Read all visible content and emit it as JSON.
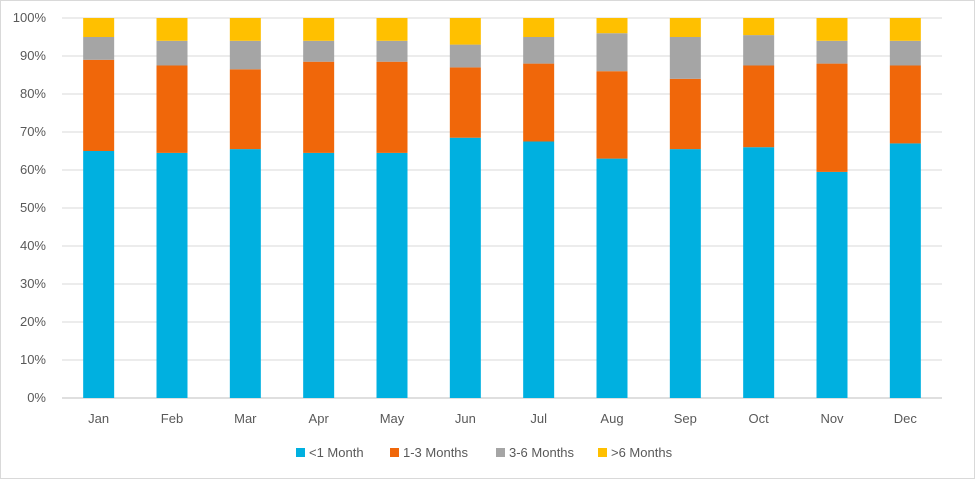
{
  "chart_data": {
    "type": "bar",
    "stacked": true,
    "categories": [
      "Jan",
      "Feb",
      "Mar",
      "Apr",
      "May",
      "Jun",
      "Jul",
      "Aug",
      "Sep",
      "Oct",
      "Nov",
      "Dec"
    ],
    "series": [
      {
        "name": "<1 Month",
        "color": "#00b0e0",
        "values": [
          65,
          64.5,
          65.5,
          64.5,
          64.5,
          68.5,
          67.5,
          63,
          65.5,
          66,
          59.5,
          67
        ]
      },
      {
        "name": "1-3 Months",
        "color": "#f0670a",
        "values": [
          24,
          23,
          21,
          24,
          24,
          18.5,
          20.5,
          23,
          18.5,
          21.5,
          28.5,
          20.5
        ]
      },
      {
        "name": "3-6 Months",
        "color": "#a5a5a5",
        "values": [
          6,
          6.5,
          7.5,
          5.5,
          5.5,
          6,
          7,
          10,
          11,
          8,
          6,
          6.5
        ]
      },
      {
        "name": ">6 Months",
        "color": "#ffc000",
        "values": [
          5,
          6,
          6,
          6,
          6,
          7,
          5,
          4,
          5,
          4.5,
          6,
          6
        ]
      }
    ],
    "yticks": [
      "0%",
      "10%",
      "20%",
      "30%",
      "40%",
      "50%",
      "60%",
      "70%",
      "80%",
      "90%",
      "100%"
    ],
    "ylim": [
      0,
      100
    ],
    "grid": true,
    "legend_position": "bottom"
  }
}
